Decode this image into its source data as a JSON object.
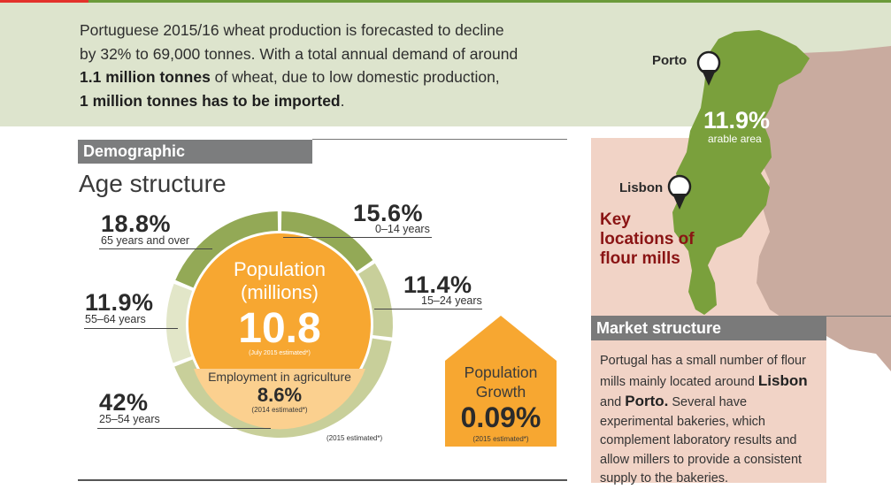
{
  "intro": {
    "line1": "Portuguese 2015/16 wheat production is forecasted to decline",
    "line2": "by 32% to 69,000 tonnes. With a total annual demand of around",
    "line3_bold": "1.1 million tonnes",
    "line3_rest": " of wheat, due to low domestic production,",
    "line4_bold": "1 million tonnes has to be imported",
    "line4_rest": "."
  },
  "map": {
    "porto_label": "Porto",
    "lisbon_label": "Lisbon",
    "arable_value": "11.9%",
    "arable_label": "arable area",
    "key_locations": "Key locations of flour mills",
    "colors": {
      "portugal": "#7aa03c",
      "spain": "#c9ab9f",
      "panel": "#f1d3c6"
    }
  },
  "demographic": {
    "section_title": "Demographic",
    "age_title": "Age structure",
    "groups": [
      {
        "pct": "18.8%",
        "label": "65 years and over",
        "share": 18.8
      },
      {
        "pct": "15.6%",
        "label": "0–14 years",
        "share": 15.6
      },
      {
        "pct": "11.4%",
        "label": "15–24 years",
        "share": 11.4
      },
      {
        "pct": "11.9%",
        "label": "55–64 years",
        "share": 11.9
      },
      {
        "pct": "42%",
        "label": "25–54 years",
        "share": 42
      }
    ],
    "ring_note": "(2015 estimated*)",
    "population_label_1": "Population",
    "population_label_2": "(millions)",
    "population_value": "10.8",
    "population_note": "(July 2015 estimated*)",
    "employment_label": "Employment in agriculture",
    "employment_value": "8.6%",
    "employment_note": "(2014 estimated*)",
    "growth_label_1": "Population",
    "growth_label_2": "Growth",
    "growth_value": "0.09%",
    "growth_note": "(2015 estimated*)",
    "colors": {
      "ring_dark": "#93a956",
      "ring_light": "#c8cf9a",
      "ring_pale": "#e2e6c8",
      "orange": "#f7a731",
      "peach": "#fbd08f"
    }
  },
  "market": {
    "title": "Market structure",
    "p1": "Portugal has a small number of flour mills mainly located around ",
    "lisbon": "Lisbon",
    "and": " and ",
    "porto": "Porto.",
    "p2": " Several have experimental bakeries, which complement laboratory results and allow millers to provide a consistent supply to the bakeries."
  }
}
